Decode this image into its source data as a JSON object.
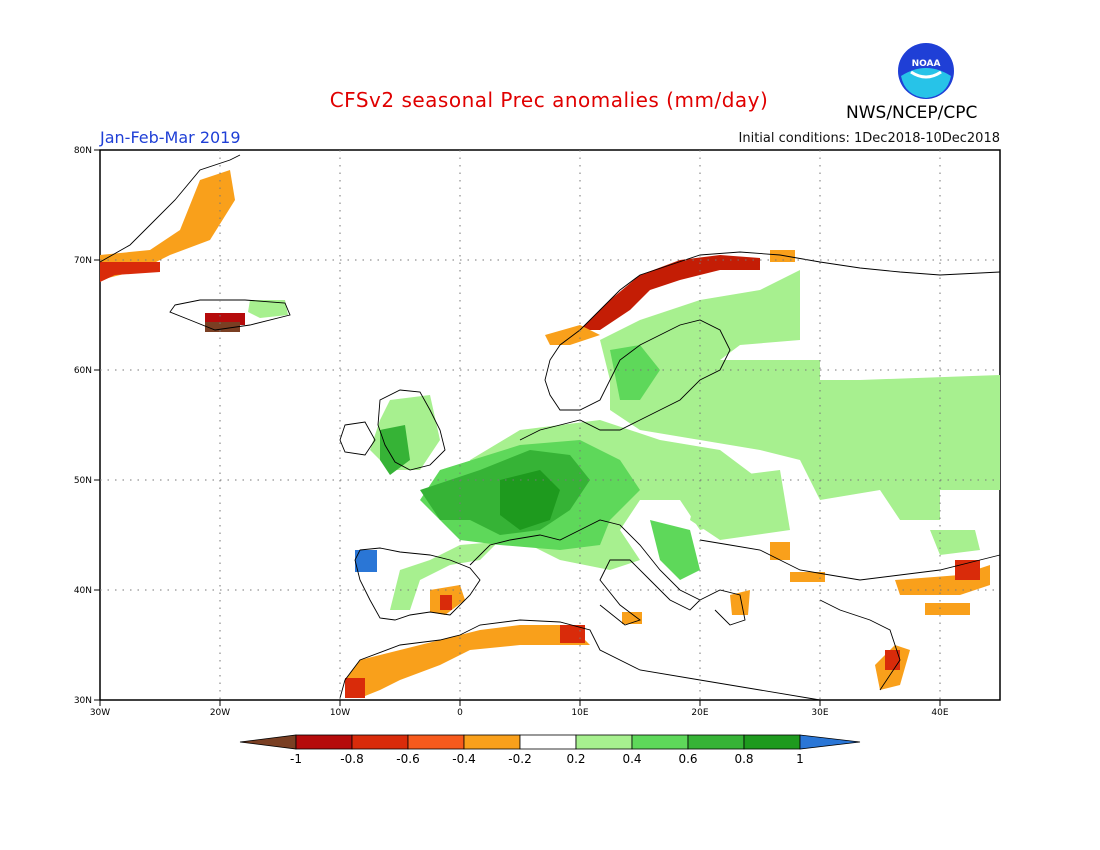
{
  "header": {
    "title": "CFSv2 seasonal Prec anomalies (mm/day)",
    "season": "Jan-Feb-Mar 2019",
    "initial_conditions": "Initial conditions: 1Dec2018-10Dec2018",
    "agency": "NWS/NCEP/CPC",
    "logo_text": "NOAA"
  },
  "map": {
    "lon_range": [
      -30,
      45
    ],
    "lat_range": [
      30,
      80
    ],
    "lon_ticks": [
      "30W",
      "20W",
      "10W",
      "0",
      "10E",
      "20E",
      "30E",
      "40E"
    ],
    "lat_ticks": [
      "80N",
      "70N",
      "60N",
      "50N",
      "40N",
      "30N"
    ],
    "regions": [
      {
        "name": "Western/Central Europe wet",
        "class": "0.6-0.8",
        "color": "#36b336"
      },
      {
        "name": "Scandinavia coast dry",
        "class": "-0.8 to -0.6",
        "color": "#c41d05"
      },
      {
        "name": "North Africa dry",
        "class": "-0.4 to -0.2",
        "color": "#f9a01b"
      },
      {
        "name": "Iberia NW very wet",
        "class": ">1",
        "color": "#2a76d6"
      }
    ]
  },
  "colorbar": {
    "ticks": [
      "-1",
      "-0.8",
      "-0.6",
      "-0.4",
      "-0.2",
      "0.2",
      "0.4",
      "0.6",
      "0.8",
      "1"
    ],
    "colors": [
      "#7a3f23",
      "#b50b0b",
      "#d92b0a",
      "#f75a1c",
      "#f9a01b",
      "#ffffff",
      "#a7f08f",
      "#5ed85a",
      "#36b336",
      "#1e9a1e",
      "#2a76d6"
    ]
  }
}
